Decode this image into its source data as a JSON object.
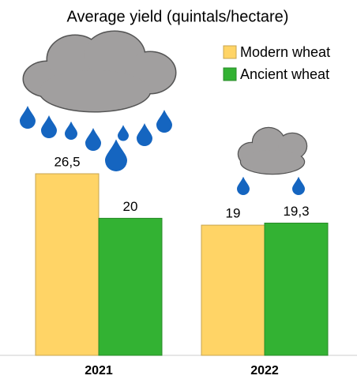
{
  "chart_data": {
    "type": "bar",
    "title": "Average yield (quintals/hectare)",
    "categories": [
      "2021",
      "2022"
    ],
    "series": [
      {
        "name": "Modern wheat",
        "color": "#ffd466",
        "values": [
          26.5,
          19
        ],
        "value_labels": [
          "26,5",
          "19"
        ]
      },
      {
        "name": "Ancient wheat",
        "color": "#33b233",
        "values": [
          20,
          19.3
        ],
        "value_labels": [
          "20",
          "19,3"
        ]
      }
    ]
  }
}
